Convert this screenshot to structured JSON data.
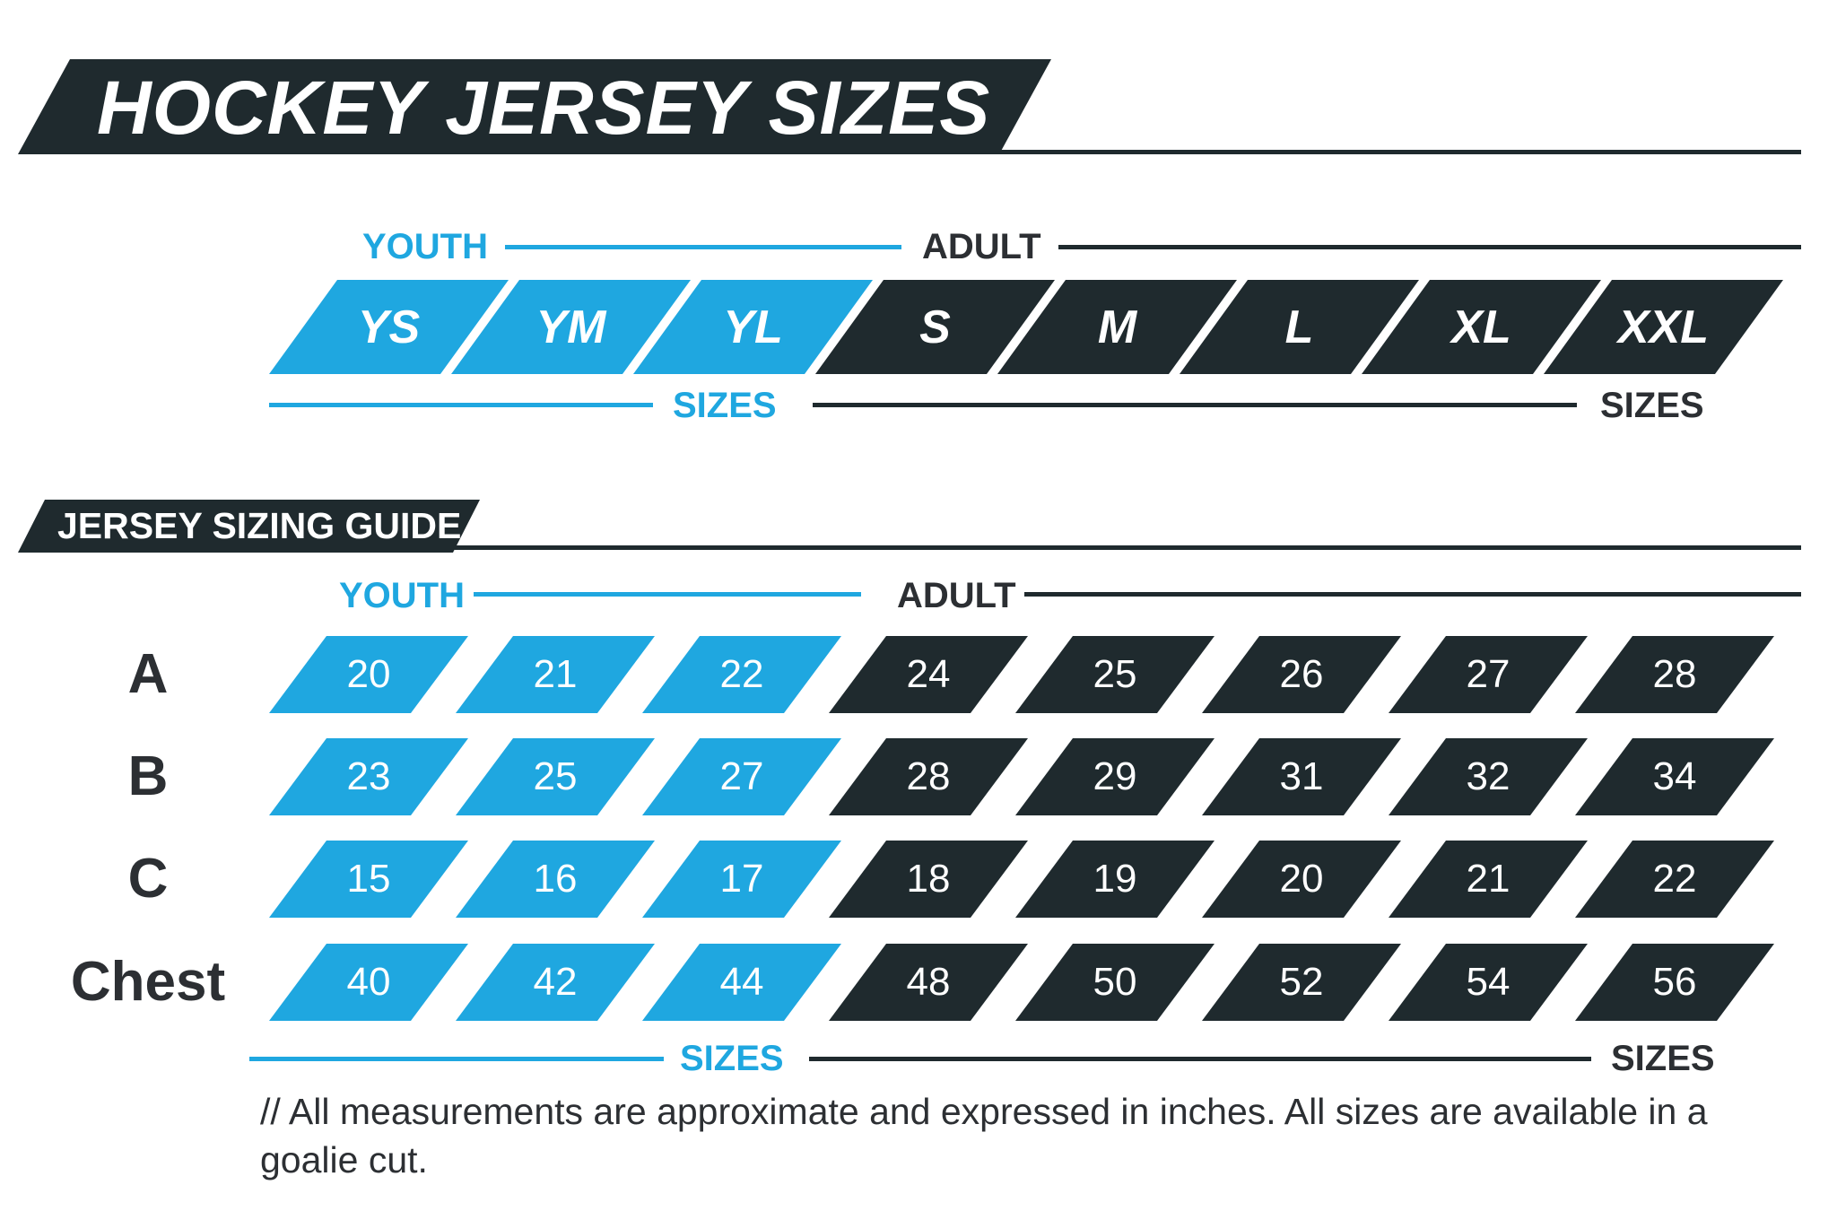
{
  "colors": {
    "dark": "#1f2a2e",
    "blue": "#1fa7e0"
  },
  "header": {
    "title": "HOCKEY JERSEY SIZES"
  },
  "sizes_chart": {
    "youth_label": "YOUTH",
    "adult_label": "ADULT",
    "youth_sizes_label": "SIZES",
    "adult_sizes_label": "SIZES",
    "sizes": [
      {
        "label": "YS",
        "group": "youth"
      },
      {
        "label": "YM",
        "group": "youth"
      },
      {
        "label": "YL",
        "group": "youth"
      },
      {
        "label": "S",
        "group": "adult"
      },
      {
        "label": "M",
        "group": "adult"
      },
      {
        "label": "L",
        "group": "adult"
      },
      {
        "label": "XL",
        "group": "adult"
      },
      {
        "label": "XXL",
        "group": "adult"
      }
    ]
  },
  "guide": {
    "title": "JERSEY SIZING GUIDE",
    "youth_label": "YOUTH",
    "adult_label": "ADULT",
    "youth_sizes_label": "SIZES",
    "adult_sizes_label": "SIZES",
    "rows": [
      {
        "label": "A",
        "values": [
          "20",
          "21",
          "22",
          "24",
          "25",
          "26",
          "27",
          "28"
        ]
      },
      {
        "label": "B",
        "values": [
          "23",
          "25",
          "27",
          "28",
          "29",
          "31",
          "32",
          "34"
        ]
      },
      {
        "label": "C",
        "values": [
          "15",
          "16",
          "17",
          "18",
          "19",
          "20",
          "21",
          "22"
        ]
      },
      {
        "label": "Chest",
        "values": [
          "40",
          "42",
          "44",
          "48",
          "50",
          "52",
          "54",
          "56"
        ]
      }
    ]
  },
  "footnote": "// All measurements are approximate and expressed in inches. All sizes are available in a goalie cut."
}
